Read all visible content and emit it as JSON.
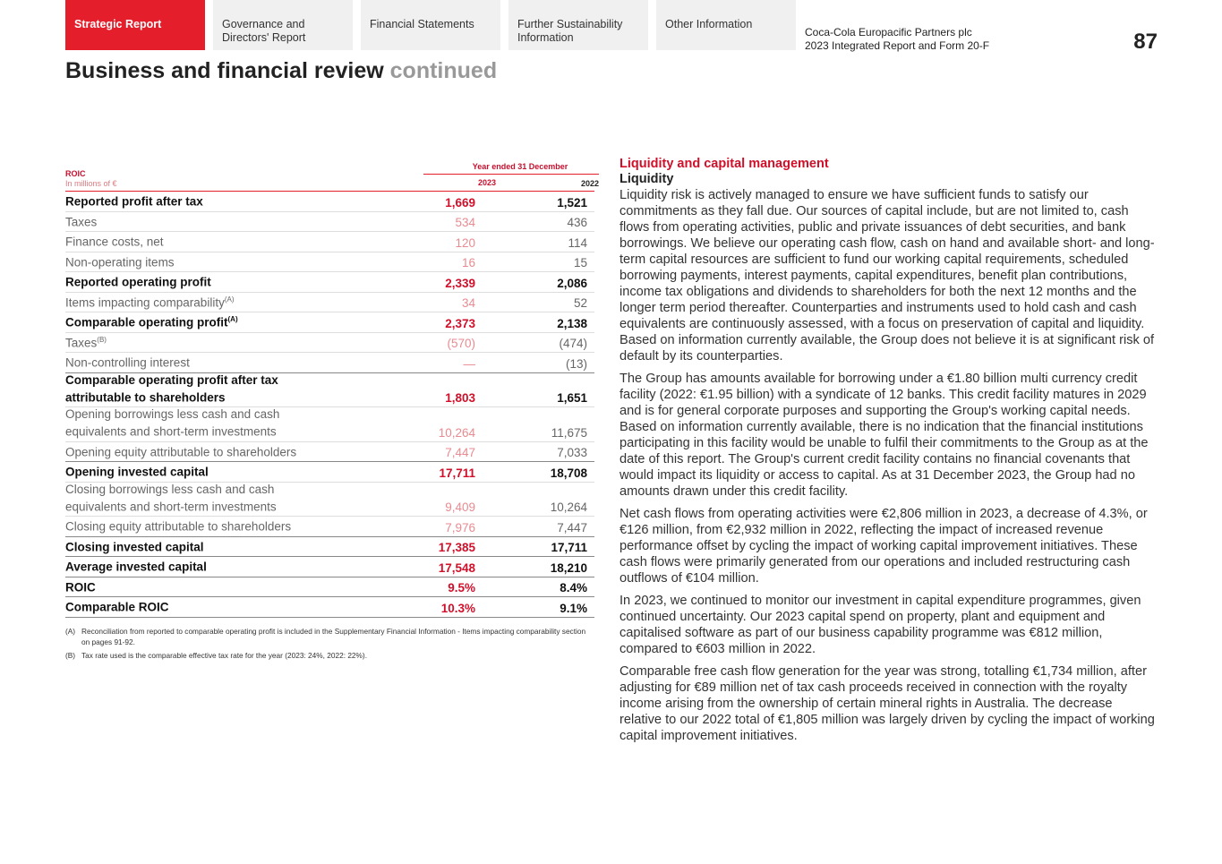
{
  "nav": {
    "tabs": [
      {
        "label": "Strategic Report",
        "active": true
      },
      {
        "label": "Governance and Directors' Report",
        "active": false
      },
      {
        "label": "Financial Statements",
        "active": false
      },
      {
        "label": "Further Sustainability Information",
        "active": false
      },
      {
        "label": "Other Information",
        "active": false
      }
    ],
    "company_line1": "Coca-Cola Europacific Partners plc",
    "company_line2": "2023 Integrated Report and Form 20-F",
    "page_number": "87"
  },
  "title": {
    "main": "Business and financial review",
    "suffix": "continued"
  },
  "table": {
    "name": "ROIC",
    "unit": "In millions of €",
    "period": "Year ended 31 December",
    "col1": "2023",
    "col2": "2022",
    "rows": [
      {
        "label": "Reported profit after tax",
        "sup": "",
        "v2023": "1,669",
        "v2022": "1,521",
        "bold": true
      },
      {
        "label": "Taxes",
        "sup": "",
        "v2023": "534",
        "v2022": "436",
        "bold": false
      },
      {
        "label": "Finance costs, net",
        "sup": "",
        "v2023": "120",
        "v2022": "114",
        "bold": false
      },
      {
        "label": "Non-operating items",
        "sup": "",
        "v2023": "16",
        "v2022": "15",
        "bold": false
      },
      {
        "label": "Reported operating profit",
        "sup": "",
        "v2023": "2,339",
        "v2022": "2,086",
        "bold": true
      },
      {
        "label": "Items impacting comparability",
        "sup": "(A)",
        "v2023": "34",
        "v2022": "52",
        "bold": false
      },
      {
        "label": "Comparable operating profit",
        "sup": "(A)",
        "v2023": "2,373",
        "v2022": "2,138",
        "bold": true
      },
      {
        "label": "Taxes",
        "sup": "(B)",
        "v2023": "(570)",
        "v2022": "(474)",
        "bold": false
      },
      {
        "label": "Non-controlling interest",
        "sup": "",
        "v2023": "—",
        "v2022": "(13)",
        "bold": false,
        "strong": true
      },
      {
        "label": "Comparable operating profit after tax attributable to shareholders",
        "sup": "",
        "v2023": "1,803",
        "v2022": "1,651",
        "bold": true
      },
      {
        "label": "Opening borrowings less cash and cash equivalents and short-term investments",
        "sup": "",
        "v2023": "10,264",
        "v2022": "11,675",
        "bold": false
      },
      {
        "label": "Opening equity attributable to shareholders",
        "sup": "",
        "v2023": "7,447",
        "v2022": "7,033",
        "bold": false,
        "strong": true
      },
      {
        "label": "Opening invested capital",
        "sup": "",
        "v2023": "17,711",
        "v2022": "18,708",
        "bold": true
      },
      {
        "label": "Closing borrowings less cash and cash equivalents and short-term investments",
        "sup": "",
        "v2023": "9,409",
        "v2022": "10,264",
        "bold": false
      },
      {
        "label": "Closing equity attributable to shareholders",
        "sup": "",
        "v2023": "7,976",
        "v2022": "7,447",
        "bold": false,
        "strong": true
      },
      {
        "label": "Closing invested capital",
        "sup": "",
        "v2023": "17,385",
        "v2022": "17,711",
        "bold": true,
        "strong": true
      },
      {
        "label": "Average invested capital",
        "sup": "",
        "v2023": "17,548",
        "v2022": "18,210",
        "bold": true,
        "strong": true
      },
      {
        "label": "ROIC",
        "sup": "",
        "v2023": "9.5%",
        "v2022": "8.4%",
        "bold": true,
        "strong": true
      },
      {
        "label": "Comparable ROIC",
        "sup": "",
        "v2023": "10.3%",
        "v2022": "9.1%",
        "bold": true,
        "strong": true
      }
    ],
    "notes": [
      {
        "key": "(A)",
        "text": "Reconciliation from reported to comparable operating profit is included in the Supplementary Financial Information - Items impacting comparability section on pages 91-92."
      },
      {
        "key": "(B)",
        "text": "Tax rate used is the comparable effective tax rate for the year (2023: 24%, 2022: 22%)."
      }
    ]
  },
  "article": {
    "heading": "Liquidity and capital management",
    "subheading": "Liquidity",
    "paragraphs": [
      "Liquidity risk is actively managed to ensure we have sufficient funds to satisfy our commitments as they fall due. Our sources of capital include, but are not limited to, cash flows from operating activities, public and private issuances of debt securities, and bank borrowings. We believe our operating cash flow, cash on hand and available short- and long-term capital resources are sufficient to fund our working capital requirements, scheduled borrowing payments, interest payments, capital expenditures, benefit plan contributions, income tax obligations and dividends to shareholders for both the next 12 months and the longer term period thereafter. Counterparties and instruments used to hold cash and cash equivalents are continuously assessed, with a focus on preservation of capital and liquidity. Based on information currently available, the Group does not believe it is at significant risk of default by its counterparties.",
      "The Group has amounts available for borrowing under a €1.80 billion multi currency credit facility (2022: €1.95 billion) with a syndicate of 12 banks. This credit facility matures in 2029 and is for general corporate purposes and supporting the Group's working capital needs. Based on information currently available, there is no indication that the financial institutions participating in this facility would be unable to fulfil their commitments to the Group as at the date of this report. The Group's current credit facility contains no financial covenants that would impact its liquidity or access to capital. As at 31 December 2023, the Group had no amounts drawn under this credit facility.",
      "Net cash flows from operating activities were €2,806 million in 2023, a decrease of 4.3%, or €126 million, from €2,932 million in 2022, reflecting the impact of increased revenue performance offset by cycling the impact of working capital improvement initiatives. These cash flows were primarily generated from our operations and included restructuring cash outflows of €104 million.",
      "In 2023, we continued to monitor our investment in capital expenditure programmes, given continued uncertainty. Our 2023 capital spend on property, plant and equipment and capitalised software as part of our business capability programme was €812 million, compared to €603 million in 2022.",
      "Comparable free cash flow generation for the year was strong, totalling €1,734 million, after adjusting for €89 million net of tax cash proceeds received in connection with the royalty income arising from the ownership of certain mineral rights in Australia. The decrease relative to our 2022 total of €1,805 million was largely driven by cycling the impact of working capital improvement initiatives."
    ]
  },
  "colors": {
    "brand_red": "#e41e2b",
    "value_red": "#d0102a"
  }
}
